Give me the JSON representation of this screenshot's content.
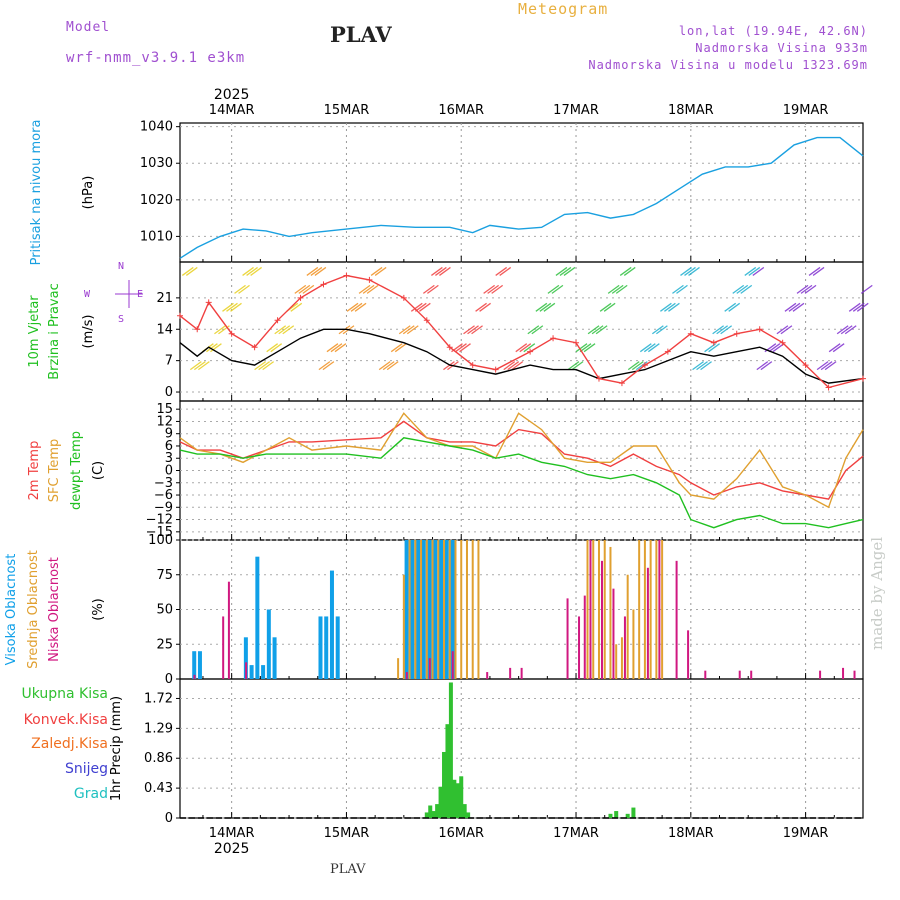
{
  "header": {
    "model_label": "Model",
    "model_name": "wrf-nmm_v3.9.1 e3km",
    "title": "PLAV",
    "meteogram": "Meteogram",
    "lonlat": "lon,lat (19.94E, 42.6N)",
    "altitude": "Nadmorska Visina 933m",
    "model_altitude": "Nadmorska Visina u modelu 1323.69m"
  },
  "footer": {
    "title": "PLAV",
    "signature": "made by Angel"
  },
  "colors": {
    "pressure": "#1aa0e0",
    "temp2m": "#f04040",
    "sfc": "#e0a030",
    "dewpt": "#20c020",
    "high_cloud": "#10a0e8",
    "mid_cloud": "#e0a030",
    "low_cloud": "#d01880",
    "precip": "#30c030",
    "header_purple": "#a050d0",
    "header_orange": "#e8b040"
  },
  "precip_legend": [
    {
      "label": "Ukupna Kisa",
      "color": "#30c030"
    },
    {
      "label": "Konvek.Kisa",
      "color": "#f04040"
    },
    {
      "label": "Zaledj.Kisa",
      "color": "#f07020"
    },
    {
      "label": "Snijeg",
      "color": "#4040d0"
    },
    {
      "label": "Grad",
      "color": "#20c0c0"
    }
  ],
  "wind_dir_labels": {
    "n": "N",
    "w": "W",
    "e": "E",
    "s": "S"
  },
  "chart_data": {
    "type": "meteogram",
    "time_axis": {
      "year": "2025",
      "day_labels": [
        "14MAR",
        "15MAR",
        "16MAR",
        "17MAR",
        "18MAR",
        "19MAR"
      ],
      "start_day": 13.55,
      "end_day": 19.5
    },
    "panels": [
      {
        "id": "pressure",
        "type": "line",
        "ylabel_lines": [
          "Pritisak na nivou mora",
          "(hPa)"
        ],
        "ylim": [
          1003,
          1041
        ],
        "ticks": [
          "1010",
          "1020",
          "1030",
          "1040"
        ],
        "series": [
          {
            "name": "Pritisak na nivou mora",
            "color": "#1aa0e0",
            "x": [
              13.55,
              13.7,
              13.9,
              14.1,
              14.3,
              14.5,
              14.7,
              15.0,
              15.3,
              15.6,
              15.9,
              16.1,
              16.25,
              16.5,
              16.7,
              16.9,
              17.1,
              17.3,
              17.5,
              17.7,
              17.9,
              18.1,
              18.3,
              18.5,
              18.7,
              18.9,
              19.1,
              19.3,
              19.5
            ],
            "y": [
              1004,
              1007,
              1010,
              1012,
              1011.5,
              1010,
              1011,
              1012,
              1013,
              1012.5,
              1012.5,
              1011,
              1013,
              1012,
              1012.5,
              1016,
              1016.5,
              1015,
              1016,
              1019,
              1023,
              1027,
              1029,
              1029,
              1030,
              1035,
              1037,
              1037,
              1032
            ]
          }
        ]
      },
      {
        "id": "wind",
        "type": "line",
        "ylabel_lines": [
          "10m Vjetar",
          "Brzina i Pravac",
          "(m/s)"
        ],
        "ylim": [
          -2,
          29
        ],
        "ticks": [
          "0",
          "7",
          "14",
          "21"
        ],
        "series": [
          {
            "name": "Brzina",
            "color": "#000000",
            "x": [
              13.55,
              13.7,
              13.8,
              14.0,
              14.2,
              14.4,
              14.6,
              14.8,
              15.0,
              15.2,
              15.5,
              15.7,
              15.9,
              16.1,
              16.3,
              16.6,
              16.8,
              17.0,
              17.2,
              17.4,
              17.6,
              17.8,
              18.0,
              18.2,
              18.4,
              18.6,
              18.8,
              19.0,
              19.2,
              19.5
            ],
            "y": [
              11,
              8,
              10,
              7,
              6,
              9,
              12,
              14,
              14,
              13,
              11,
              9,
              6,
              5,
              4,
              6,
              5,
              5,
              3,
              4,
              5,
              7,
              9,
              8,
              9,
              10,
              8,
              4,
              2,
              3
            ]
          },
          {
            "name": "Udari",
            "color": "#f04040",
            "x": [
              13.55,
              13.7,
              13.8,
              14.0,
              14.2,
              14.4,
              14.6,
              14.8,
              15.0,
              15.2,
              15.5,
              15.7,
              15.9,
              16.1,
              16.3,
              16.6,
              16.8,
              17.0,
              17.2,
              17.4,
              17.6,
              17.8,
              18.0,
              18.2,
              18.4,
              18.6,
              18.8,
              19.0,
              19.2,
              19.5
            ],
            "y": [
              17,
              14,
              20,
              13,
              10,
              16,
              21,
              24,
              26,
              25,
              21,
              16,
              10,
              6,
              5,
              9,
              12,
              11,
              3,
              2,
              6,
              9,
              13,
              11,
              13,
              14,
              11,
              6,
              1,
              3
            ]
          }
        ]
      },
      {
        "id": "temperature",
        "type": "line",
        "ylabel_lines": [
          "2m Temp",
          "SFC Temp",
          "dewpt Temp",
          "(C)"
        ],
        "ylim": [
          -17,
          17
        ],
        "ticks": [
          "15",
          "12",
          "9",
          "6",
          "3",
          "0",
          "−3",
          "−6",
          "−9",
          "−12",
          "−15"
        ],
        "series": [
          {
            "name": "2m Temp",
            "color": "#f04040",
            "x": [
              13.55,
              13.7,
              13.9,
              14.1,
              14.3,
              14.5,
              14.7,
              15.0,
              15.3,
              15.5,
              15.7,
              15.9,
              16.1,
              16.3,
              16.5,
              16.7,
              16.9,
              17.1,
              17.3,
              17.5,
              17.7,
              17.9,
              18.0,
              18.2,
              18.4,
              18.6,
              18.8,
              19.0,
              19.2,
              19.35,
              19.5
            ],
            "y": [
              7,
              5,
              5,
              3,
              5,
              7,
              7,
              7.5,
              8,
              12,
              8,
              7,
              7,
              6,
              10,
              9,
              4,
              3,
              1,
              4,
              1,
              -1,
              -3,
              -6,
              -4,
              -3,
              -5,
              -6,
              -7,
              0,
              3.5
            ]
          },
          {
            "name": "SFC Temp",
            "color": "#e0a030",
            "x": [
              13.55,
              13.7,
              13.9,
              14.1,
              14.3,
              14.5,
              14.7,
              15.0,
              15.3,
              15.5,
              15.7,
              15.9,
              16.1,
              16.3,
              16.5,
              16.7,
              16.9,
              17.1,
              17.3,
              17.5,
              17.7,
              17.9,
              18.0,
              18.2,
              18.4,
              18.6,
              18.8,
              19.0,
              19.2,
              19.35,
              19.5
            ],
            "y": [
              8,
              5,
              4,
              2,
              5,
              8,
              5,
              6,
              5,
              14,
              8,
              6,
              6,
              3,
              14,
              10,
              3,
              2,
              2,
              6,
              6,
              -3,
              -6,
              -7,
              -2,
              5,
              -4,
              -6,
              -9,
              3,
              10
            ]
          },
          {
            "name": "dewpt Temp",
            "color": "#20c020",
            "x": [
              13.55,
              13.7,
              13.9,
              14.1,
              14.3,
              14.5,
              14.7,
              15.0,
              15.3,
              15.5,
              15.7,
              15.9,
              16.1,
              16.3,
              16.5,
              16.7,
              16.9,
              17.1,
              17.3,
              17.5,
              17.7,
              17.9,
              18.0,
              18.2,
              18.4,
              18.6,
              18.8,
              19.0,
              19.2,
              19.35,
              19.5
            ],
            "y": [
              5,
              4,
              4,
              3,
              4,
              4,
              4,
              4,
              3,
              8,
              7,
              6,
              5,
              3,
              4,
              2,
              1,
              -1,
              -2,
              -1,
              -3,
              -6,
              -12,
              -14,
              -12,
              -11,
              -13,
              -13,
              -14,
              -13,
              -12
            ]
          }
        ]
      },
      {
        "id": "clouds",
        "type": "bar",
        "ylabel_lines": [
          "Visoka Oblacnost",
          "Srednja Oblacnost",
          "Niska Oblacnost",
          "(%)"
        ],
        "ylim": [
          0,
          100
        ],
        "ticks": [
          "0",
          "25",
          "50",
          "75",
          "100"
        ],
        "series": [
          {
            "name": "Visoka Oblacnost",
            "color": "#10a0e8",
            "x": [
              13.7,
              13.75,
              14.15,
              14.2,
              14.25,
              14.3,
              14.35,
              14.4,
              14.8,
              14.85,
              14.9,
              14.95,
              15.55,
              15.6,
              15.65,
              15.7,
              15.75,
              15.8,
              15.85,
              15.9,
              15.95
            ],
            "y": [
              20,
              20,
              30,
              10,
              88,
              10,
              50,
              30,
              45,
              45,
              78,
              45,
              100,
              100,
              100,
              100,
              100,
              100,
              100,
              100,
              100
            ]
          },
          {
            "name": "Srednja Oblacnost",
            "color": "#e0a030",
            "x": [
              15.45,
              15.5,
              15.55,
              15.6,
              15.65,
              15.7,
              15.75,
              15.8,
              15.85,
              15.9,
              15.95,
              16.0,
              16.05,
              16.1,
              16.15,
              17.1,
              17.15,
              17.2,
              17.25,
              17.3,
              17.35,
              17.4,
              17.45,
              17.5,
              17.55,
              17.6,
              17.65,
              17.7,
              17.75
            ],
            "y": [
              15,
              75,
              100,
              100,
              100,
              100,
              100,
              100,
              100,
              100,
              100,
              100,
              100,
              100,
              100,
              100,
              100,
              100,
              100,
              95,
              25,
              30,
              75,
              50,
              100,
              100,
              100,
              100,
              100
            ]
          },
          {
            "name": "Niska Oblacnost",
            "color": "#d01880",
            "x": [
              13.65,
              13.9,
              13.95,
              14.1,
              15.5,
              15.7,
              15.9,
              16.2,
              16.4,
              16.5,
              16.9,
              17.0,
              17.05,
              17.1,
              17.2,
              17.3,
              17.4,
              17.6,
              17.7,
              17.85,
              17.95,
              18.1,
              18.4,
              18.5,
              19.1,
              19.3,
              19.4
            ],
            "y": [
              3,
              45,
              70,
              12,
              5,
              15,
              20,
              5,
              8,
              8,
              58,
              45,
              60,
              100,
              85,
              65,
              45,
              80,
              100,
              85,
              35,
              6,
              6,
              6,
              6,
              8,
              6
            ]
          }
        ]
      },
      {
        "id": "precip",
        "type": "bar",
        "ylabel_lines": [
          "1hr Precip (mm)"
        ],
        "ylim": [
          0,
          2.0
        ],
        "ticks": [
          "0",
          "0.43",
          "0.86",
          "1.29",
          "1.72"
        ],
        "series": [
          {
            "name": "Ukupna Kisa",
            "color": "#30c030",
            "x": [
              15.7,
              15.73,
              15.76,
              15.79,
              15.82,
              15.85,
              15.88,
              15.91,
              15.94,
              15.97,
              16.0,
              16.03,
              16.06,
              17.3,
              17.35,
              17.45,
              17.5
            ],
            "y": [
              0.08,
              0.18,
              0.1,
              0.2,
              0.45,
              0.95,
              1.35,
              1.95,
              0.55,
              0.5,
              0.6,
              0.2,
              0.08,
              0.06,
              0.1,
              0.06,
              0.15
            ]
          }
        ]
      }
    ]
  }
}
